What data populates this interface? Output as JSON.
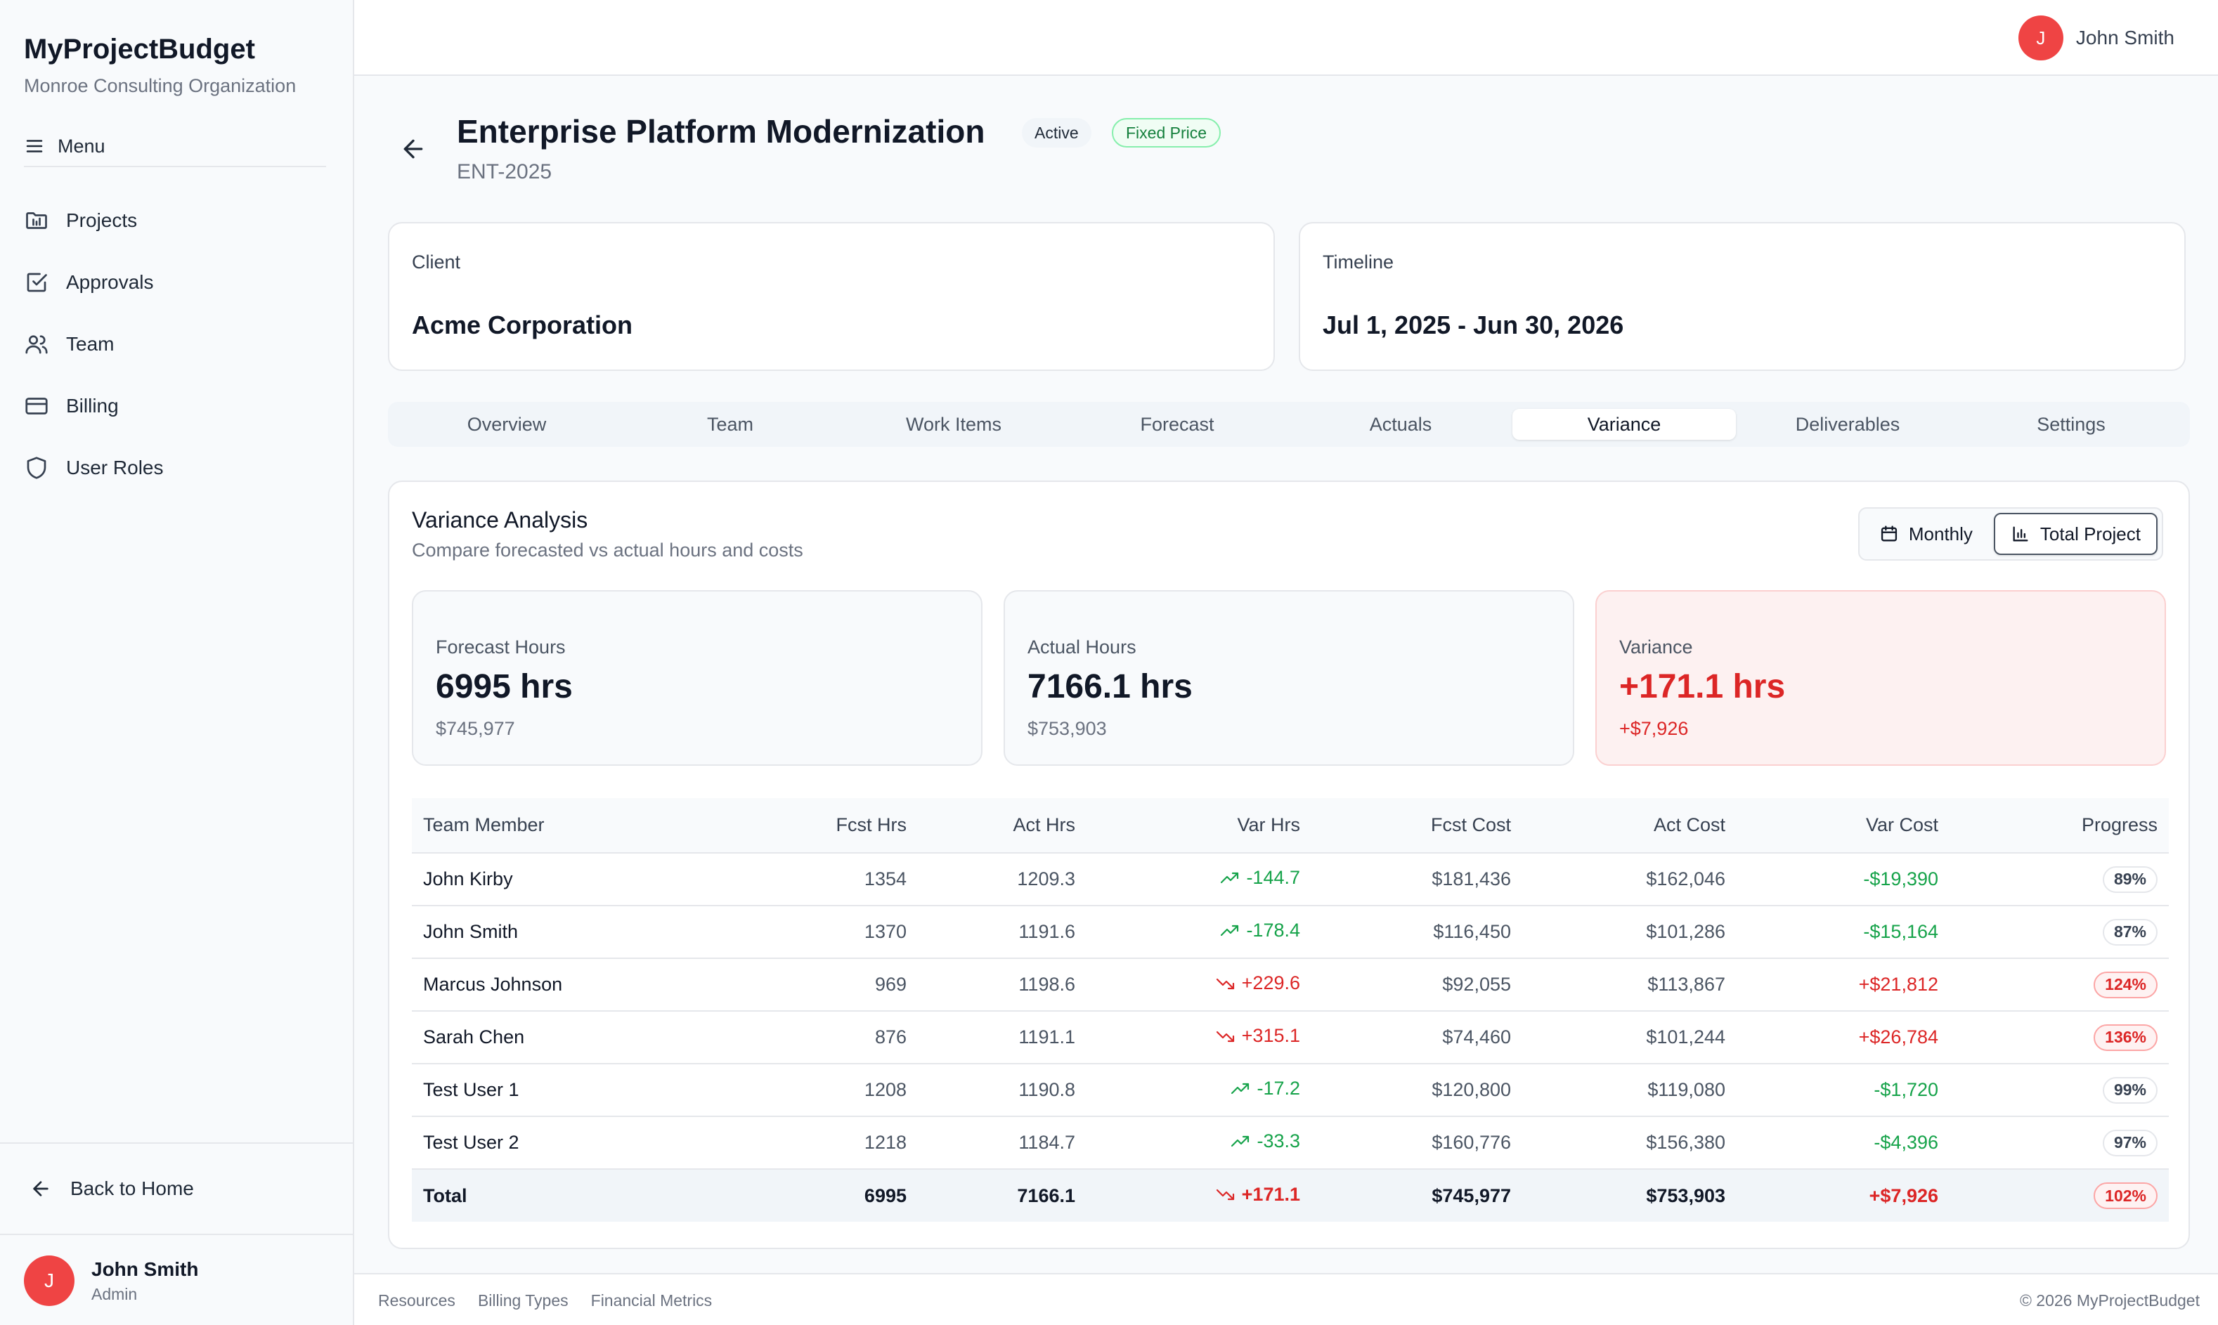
{
  "app": {
    "name": "MyProjectBudget",
    "organization": "Monroe Consulting Organization"
  },
  "sidebar": {
    "menu_label": "Menu",
    "items": [
      {
        "label": "Projects",
        "icon": "folder-chart-icon"
      },
      {
        "label": "Approvals",
        "icon": "check-square-icon"
      },
      {
        "label": "Team",
        "icon": "users-icon"
      },
      {
        "label": "Billing",
        "icon": "credit-card-icon"
      },
      {
        "label": "User Roles",
        "icon": "shield-icon"
      }
    ],
    "back_label": "Back to Home",
    "user": {
      "initial": "J",
      "name": "John Smith",
      "role": "Admin"
    }
  },
  "topbar": {
    "user_initial": "J",
    "user_name": "John Smith"
  },
  "project": {
    "title": "Enterprise Platform Modernization",
    "code": "ENT-2025",
    "status_badge": "Active",
    "type_badge": "Fixed Price",
    "client_label": "Client",
    "client_value": "Acme Corporation",
    "timeline_label": "Timeline",
    "timeline_value": "Jul 1, 2025 - Jun 30, 2026"
  },
  "tabs": [
    "Overview",
    "Team",
    "Work Items",
    "Forecast",
    "Actuals",
    "Variance",
    "Deliverables",
    "Settings"
  ],
  "active_tab": "Variance",
  "variance": {
    "title": "Variance Analysis",
    "subtitle": "Compare forecasted vs actual hours and costs",
    "toggle": {
      "monthly": "Monthly",
      "total": "Total Project",
      "selected": "Total Project"
    },
    "stats": {
      "forecast": {
        "label": "Forecast Hours",
        "value": "6995 hrs",
        "sub": "$745,977"
      },
      "actual": {
        "label": "Actual Hours",
        "value": "7166.1 hrs",
        "sub": "$753,903"
      },
      "variance": {
        "label": "Variance",
        "value": "+171.1 hrs",
        "sub": "+$7,926"
      }
    },
    "columns": [
      "Team Member",
      "Fcst Hrs",
      "Act Hrs",
      "Var Hrs",
      "Fcst Cost",
      "Act Cost",
      "Var Cost",
      "Progress"
    ],
    "rows": [
      {
        "name": "John Kirby",
        "fcst_hrs": "1354",
        "act_hrs": "1209.3",
        "var_hrs": "-144.7",
        "fcst_cost": "$181,436",
        "act_cost": "$162,046",
        "var_cost": "-$19,390",
        "progress": "89%",
        "over": false
      },
      {
        "name": "John Smith",
        "fcst_hrs": "1370",
        "act_hrs": "1191.6",
        "var_hrs": "-178.4",
        "fcst_cost": "$116,450",
        "act_cost": "$101,286",
        "var_cost": "-$15,164",
        "progress": "87%",
        "over": false
      },
      {
        "name": "Marcus Johnson",
        "fcst_hrs": "969",
        "act_hrs": "1198.6",
        "var_hrs": "+229.6",
        "fcst_cost": "$92,055",
        "act_cost": "$113,867",
        "var_cost": "+$21,812",
        "progress": "124%",
        "over": true
      },
      {
        "name": "Sarah Chen",
        "fcst_hrs": "876",
        "act_hrs": "1191.1",
        "var_hrs": "+315.1",
        "fcst_cost": "$74,460",
        "act_cost": "$101,244",
        "var_cost": "+$26,784",
        "progress": "136%",
        "over": true
      },
      {
        "name": "Test User 1",
        "fcst_hrs": "1208",
        "act_hrs": "1190.8",
        "var_hrs": "-17.2",
        "fcst_cost": "$120,800",
        "act_cost": "$119,080",
        "var_cost": "-$1,720",
        "progress": "99%",
        "over": false
      },
      {
        "name": "Test User 2",
        "fcst_hrs": "1218",
        "act_hrs": "1184.7",
        "var_hrs": "-33.3",
        "fcst_cost": "$160,776",
        "act_cost": "$156,380",
        "var_cost": "-$4,396",
        "progress": "97%",
        "over": false
      }
    ],
    "total": {
      "name": "Total",
      "fcst_hrs": "6995",
      "act_hrs": "7166.1",
      "var_hrs": "+171.1",
      "fcst_cost": "$745,977",
      "act_cost": "$753,903",
      "var_cost": "+$7,926",
      "progress": "102%",
      "over": true
    }
  },
  "footer": {
    "links": [
      "Resources",
      "Billing Types",
      "Financial Metrics"
    ],
    "copyright": "© 2026 MyProjectBudget"
  },
  "colors": {
    "accent_red": "#dc2626",
    "good_green": "#16a34a",
    "avatar": "#ef4444"
  }
}
